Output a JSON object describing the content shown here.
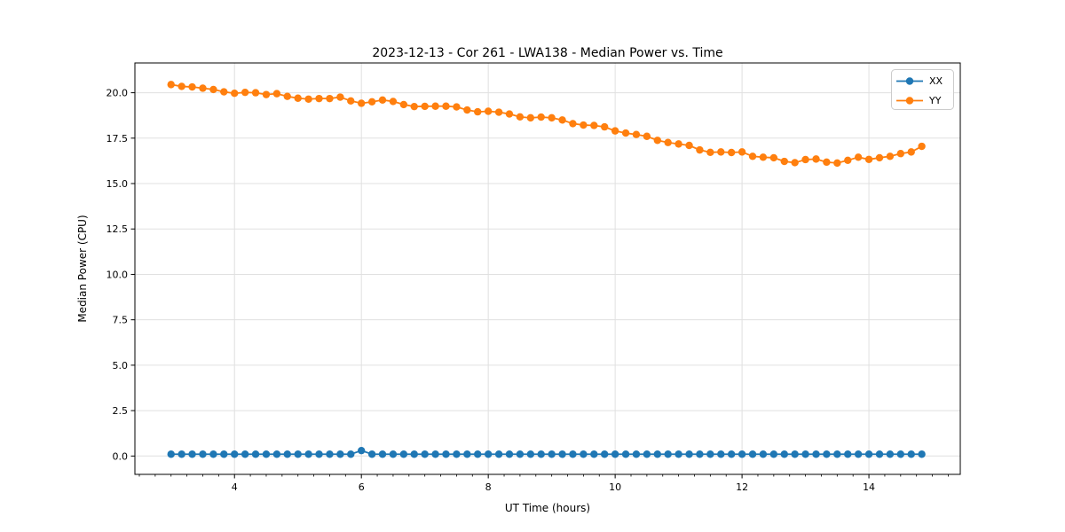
{
  "title": "2023-12-13 - Cor 261 - LWA138 - Median Power vs. Time",
  "chart_data": {
    "type": "line",
    "title": "2023-12-13 - Cor 261 - LWA138 - Median Power vs. Time",
    "xlabel": "UT Time (hours)",
    "ylabel": "Median Power (CPU)",
    "xlim": [
      2.43,
      15.44
    ],
    "ylim": [
      -1.01,
      21.64
    ],
    "xticks": [
      4,
      6,
      8,
      10,
      12,
      14
    ],
    "xtick_labels": [
      "4",
      "6",
      "8",
      "10",
      "12",
      "14"
    ],
    "x_minor_step": 0.25,
    "yticks": [
      0.0,
      2.5,
      5.0,
      7.5,
      10.0,
      12.5,
      15.0,
      17.5,
      20.0
    ],
    "ytick_labels": [
      "0.0",
      "2.5",
      "5.0",
      "7.5",
      "10.0",
      "12.5",
      "15.0",
      "17.5",
      "20.0"
    ],
    "grid": true,
    "grid_color": "#e0e0e0",
    "legend_position": "upper right",
    "x": [
      3.0,
      3.167,
      3.333,
      3.5,
      3.667,
      3.833,
      4.0,
      4.167,
      4.333,
      4.5,
      4.667,
      4.833,
      5.0,
      5.167,
      5.333,
      5.5,
      5.667,
      5.833,
      6.0,
      6.167,
      6.333,
      6.5,
      6.667,
      6.833,
      7.0,
      7.167,
      7.333,
      7.5,
      7.667,
      7.833,
      8.0,
      8.167,
      8.333,
      8.5,
      8.667,
      8.833,
      9.0,
      9.167,
      9.333,
      9.5,
      9.667,
      9.833,
      10.0,
      10.167,
      10.333,
      10.5,
      10.667,
      10.833,
      11.0,
      11.167,
      11.333,
      11.5,
      11.667,
      11.833,
      12.0,
      12.167,
      12.333,
      12.5,
      12.667,
      12.833,
      13.0,
      13.167,
      13.333,
      13.5,
      13.667,
      13.833,
      14.0,
      14.167,
      14.333,
      14.5,
      14.667,
      14.833
    ],
    "series": [
      {
        "name": "XX",
        "color": "#1f77b4",
        "values": [
          0.1,
          0.1,
          0.1,
          0.1,
          0.1,
          0.1,
          0.1,
          0.1,
          0.1,
          0.1,
          0.1,
          0.1,
          0.1,
          0.1,
          0.1,
          0.1,
          0.1,
          0.1,
          0.3,
          0.1,
          0.1,
          0.1,
          0.1,
          0.1,
          0.1,
          0.1,
          0.1,
          0.1,
          0.1,
          0.1,
          0.1,
          0.1,
          0.1,
          0.1,
          0.1,
          0.1,
          0.1,
          0.1,
          0.1,
          0.1,
          0.1,
          0.1,
          0.1,
          0.1,
          0.1,
          0.1,
          0.1,
          0.1,
          0.1,
          0.1,
          0.1,
          0.1,
          0.1,
          0.1,
          0.1,
          0.1,
          0.1,
          0.1,
          0.1,
          0.1,
          0.1,
          0.1,
          0.1,
          0.1,
          0.1,
          0.1,
          0.1,
          0.1,
          0.1,
          0.1,
          0.1,
          0.1
        ]
      },
      {
        "name": "YY",
        "color": "#ff7f0e",
        "values": [
          20.45,
          20.35,
          20.32,
          20.25,
          20.18,
          20.05,
          19.97,
          20.02,
          20.0,
          19.9,
          19.95,
          19.8,
          19.7,
          19.65,
          19.68,
          19.68,
          19.76,
          19.55,
          19.42,
          19.5,
          19.6,
          19.52,
          19.35,
          19.24,
          19.25,
          19.26,
          19.26,
          19.22,
          19.05,
          18.95,
          18.98,
          18.93,
          18.83,
          18.67,
          18.62,
          18.66,
          18.62,
          18.5,
          18.3,
          18.22,
          18.2,
          18.12,
          17.9,
          17.78,
          17.7,
          17.6,
          17.38,
          17.26,
          17.18,
          17.1,
          16.85,
          16.72,
          16.74,
          16.71,
          16.74,
          16.5,
          16.45,
          16.42,
          16.22,
          16.15,
          16.32,
          16.35,
          16.18,
          16.13,
          16.28,
          16.45,
          16.33,
          16.42,
          16.5,
          16.65,
          16.74,
          17.05
        ]
      }
    ]
  },
  "style": {
    "spine_color": "#000000",
    "tick_color": "#000000",
    "legend_border": "#cccccc",
    "legend_bg": "#ffffff"
  }
}
